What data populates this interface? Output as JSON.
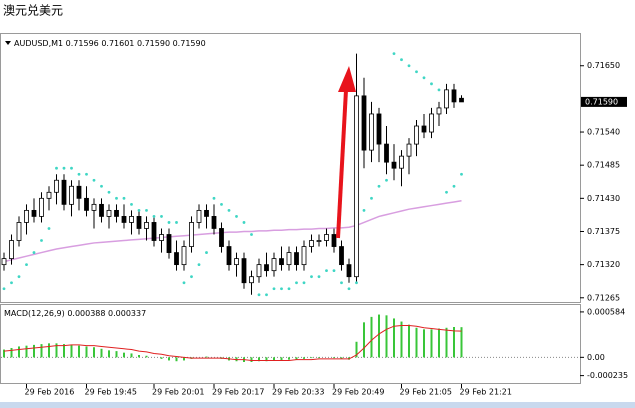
{
  "page_title": "澳元兑美元",
  "chart_data": [
    {
      "type": "candlestick",
      "symbol": "AUDUSD,M1",
      "quote": [
        "0.71596",
        "0.71601",
        "0.71590",
        "0.71590"
      ],
      "categories": [
        null,
        null,
        null,
        "29 Feb 2016",
        null,
        null,
        null,
        null,
        null,
        null,
        null,
        "29 Feb 19:45",
        null,
        null,
        null,
        null,
        null,
        null,
        null,
        null,
        "29 Feb 20:01",
        null,
        null,
        null,
        null,
        null,
        null,
        null,
        "29 Feb 20:17",
        null,
        null,
        null,
        null,
        null,
        null,
        null,
        "29 Feb 20:33",
        null,
        null,
        null,
        null,
        null,
        null,
        null,
        "29 Feb 20:49",
        null,
        null,
        null,
        null,
        null,
        null,
        null,
        null,
        "29 Feb 21:05",
        null,
        null,
        null,
        null,
        null,
        null,
        null,
        "29 Feb 21:21"
      ],
      "candles": [
        [
          0.7132,
          0.7134,
          0.7131,
          0.7133
        ],
        [
          0.7133,
          0.7137,
          0.7132,
          0.7136
        ],
        [
          0.7136,
          0.714,
          0.7135,
          0.7139
        ],
        [
          0.7139,
          0.7142,
          0.7137,
          0.7141
        ],
        [
          0.7141,
          0.7143,
          0.7139,
          0.714
        ],
        [
          0.714,
          0.7144,
          0.7139,
          0.7143
        ],
        [
          0.7143,
          0.7145,
          0.7141,
          0.7144
        ],
        [
          0.7144,
          0.7147,
          0.7142,
          0.7146
        ],
        [
          0.7146,
          0.7147,
          0.7141,
          0.7142
        ],
        [
          0.7142,
          0.7146,
          0.714,
          0.7145
        ],
        [
          0.7145,
          0.7146,
          0.7141,
          0.7143
        ],
        [
          0.7143,
          0.7145,
          0.714,
          0.7141
        ],
        [
          0.7141,
          0.7143,
          0.7138,
          0.7142
        ],
        [
          0.7142,
          0.7143,
          0.7139,
          0.714
        ],
        [
          0.714,
          0.7142,
          0.7138,
          0.7141
        ],
        [
          0.7141,
          0.7142,
          0.7139,
          0.714
        ],
        [
          0.714,
          0.7142,
          0.7138,
          0.7139
        ],
        [
          0.7139,
          0.7141,
          0.7137,
          0.714
        ],
        [
          0.714,
          0.7141,
          0.7137,
          0.7138
        ],
        [
          0.7138,
          0.714,
          0.7136,
          0.7139
        ],
        [
          0.7139,
          0.714,
          0.7135,
          0.7136
        ],
        [
          0.7136,
          0.7138,
          0.7134,
          0.7137
        ],
        [
          0.7137,
          0.7138,
          0.7133,
          0.7134
        ],
        [
          0.7134,
          0.7136,
          0.7131,
          0.7132
        ],
        [
          0.7132,
          0.7136,
          0.7131,
          0.7135
        ],
        [
          0.7135,
          0.714,
          0.7134,
          0.7139
        ],
        [
          0.7139,
          0.7142,
          0.7138,
          0.7141
        ],
        [
          0.7141,
          0.7142,
          0.7138,
          0.714
        ],
        [
          0.714,
          0.7142,
          0.7137,
          0.7138
        ],
        [
          0.7138,
          0.7139,
          0.7134,
          0.7135
        ],
        [
          0.7135,
          0.7136,
          0.7131,
          0.7132
        ],
        [
          0.7132,
          0.7134,
          0.713,
          0.7133
        ],
        [
          0.7133,
          0.7134,
          0.7128,
          0.7129
        ],
        [
          0.7129,
          0.7131,
          0.7127,
          0.713
        ],
        [
          0.713,
          0.7133,
          0.7129,
          0.7132
        ],
        [
          0.7132,
          0.7134,
          0.713,
          0.7131
        ],
        [
          0.7131,
          0.7134,
          0.713,
          0.7133
        ],
        [
          0.7133,
          0.7135,
          0.7131,
          0.7132
        ],
        [
          0.7132,
          0.7135,
          0.7131,
          0.7134
        ],
        [
          0.7134,
          0.7135,
          0.7131,
          0.7132
        ],
        [
          0.7132,
          0.7136,
          0.7131,
          0.7135
        ],
        [
          0.7135,
          0.7137,
          0.7134,
          0.7136
        ],
        [
          0.7136,
          0.7137,
          0.7135,
          0.7136
        ],
        [
          0.7136,
          0.7138,
          0.7135,
          0.7137
        ],
        [
          0.7137,
          0.7138,
          0.7134,
          0.7135
        ],
        [
          0.7135,
          0.7136,
          0.7131,
          0.7132
        ],
        [
          0.7132,
          0.7133,
          0.7129,
          0.713
        ],
        [
          0.713,
          0.7167,
          0.7129,
          0.716
        ],
        [
          0.716,
          0.7163,
          0.7148,
          0.7151
        ],
        [
          0.7151,
          0.7159,
          0.7149,
          0.7157
        ],
        [
          0.7157,
          0.7158,
          0.7149,
          0.7152
        ],
        [
          0.7152,
          0.7155,
          0.7147,
          0.7149
        ],
        [
          0.7149,
          0.7152,
          0.7146,
          0.7148
        ],
        [
          0.7148,
          0.7151,
          0.7145,
          0.715
        ],
        [
          0.715,
          0.7153,
          0.7147,
          0.7152
        ],
        [
          0.7152,
          0.7156,
          0.715,
          0.7155
        ],
        [
          0.7155,
          0.7157,
          0.7153,
          0.7154
        ],
        [
          0.7154,
          0.7158,
          0.7153,
          0.7157
        ],
        [
          0.7157,
          0.7159,
          0.7155,
          0.7158
        ],
        [
          0.7158,
          0.7162,
          0.7157,
          0.7161
        ],
        [
          0.7161,
          0.7162,
          0.7158,
          0.7159
        ],
        [
          0.71596,
          0.71601,
          0.7159,
          0.7159
        ]
      ],
      "up_color": "#ffffff",
      "down_color": "#000000",
      "ma": {
        "color": "#d89ee0",
        "values": [
          0.71325,
          0.71328,
          0.71331,
          0.71334,
          0.71337,
          0.7134,
          0.71343,
          0.71346,
          0.71348,
          0.7135,
          0.71352,
          0.71354,
          0.71356,
          0.71357,
          0.71358,
          0.71359,
          0.7136,
          0.71361,
          0.71362,
          0.71363,
          0.71364,
          0.71365,
          0.71366,
          0.71367,
          0.71368,
          0.71369,
          0.7137,
          0.71371,
          0.71372,
          0.71373,
          0.71374,
          0.71374,
          0.71375,
          0.71375,
          0.71376,
          0.71376,
          0.71377,
          0.71377,
          0.71378,
          0.71378,
          0.71379,
          0.71379,
          0.7138,
          0.7138,
          0.71381,
          0.71381,
          0.71382,
          0.71385,
          0.7139,
          0.71395,
          0.714,
          0.71403,
          0.71406,
          0.71409,
          0.71412,
          0.71414,
          0.71416,
          0.71418,
          0.7142,
          0.71422,
          0.71424,
          0.71426
        ]
      },
      "sar": {
        "color": "#3fd6c4",
        "values": [
          0.7128,
          0.7129,
          0.713,
          0.7132,
          0.7134,
          0.7136,
          0.7138,
          0.7148,
          0.7148,
          0.7148,
          0.7147,
          0.7147,
          0.7146,
          0.7145,
          0.7144,
          0.7143,
          0.7143,
          0.7142,
          0.7141,
          0.7141,
          0.714,
          0.714,
          0.7139,
          0.7139,
          0.7129,
          0.713,
          0.7132,
          0.7134,
          0.7143,
          0.7142,
          0.7141,
          0.714,
          0.7139,
          0.7137,
          0.7127,
          0.7127,
          0.7128,
          0.7128,
          0.7128,
          0.7129,
          0.7129,
          0.713,
          0.713,
          0.7131,
          0.7131,
          0.7129,
          0.7128,
          0.7129,
          0.7141,
          0.7143,
          0.7145,
          0.7146,
          0.7167,
          0.7166,
          0.7165,
          0.7164,
          0.7163,
          0.7162,
          0.7161,
          0.7144,
          0.7145,
          0.7147
        ]
      },
      "ylim": [
        0.71258,
        0.71701
      ],
      "yticks": [
        {
          "value": 0.7165,
          "label": "0.71650"
        },
        {
          "value": 0.7154,
          "label": "0.71540"
        },
        {
          "value": 0.71485,
          "label": "0.71485"
        },
        {
          "value": 0.7143,
          "label": "0.71430"
        },
        {
          "value": 0.71375,
          "label": "0.71375"
        },
        {
          "value": 0.7132,
          "label": "0.71320"
        },
        {
          "value": 0.71265,
          "label": "0.71265"
        }
      ],
      "last_price": {
        "value": 0.7159,
        "label": "0.71590"
      }
    },
    {
      "type": "macd",
      "name": "MACD(12,26,9)",
      "quote": [
        "0.000388",
        "0.000337"
      ],
      "histogram": {
        "color": "#39c639",
        "values": [
          0.0001,
          0.00012,
          0.00014,
          0.00015,
          0.00016,
          0.00017,
          0.00018,
          0.00018,
          0.00017,
          0.00016,
          0.00015,
          0.00014,
          0.00013,
          0.00011,
          9e-05,
          8e-05,
          6e-05,
          5e-05,
          3e-05,
          2e-05,
          0,
          -2e-05,
          -4e-05,
          -5e-05,
          -4e-05,
          -2e-05,
          0,
          1e-05,
          0,
          -2e-05,
          -4e-05,
          -5e-05,
          -6e-05,
          -6e-05,
          -5e-05,
          -5e-05,
          -4e-05,
          -4e-05,
          -3e-05,
          -3e-05,
          -2e-05,
          -1e-05,
          -1e-05,
          0,
          -1e-05,
          -2e-05,
          -3e-05,
          0.0002,
          0.00045,
          0.00052,
          0.00055,
          0.00054,
          0.0005,
          0.00046,
          0.00042,
          0.00038,
          0.00036,
          0.00036,
          0.00037,
          0.00038,
          0.00039,
          0.000388
        ]
      },
      "signal": {
        "color": "#e02020",
        "values": [
          8e-05,
          9e-05,
          0.0001,
          0.00011,
          0.00012,
          0.00013,
          0.00014,
          0.00015,
          0.00015,
          0.00016,
          0.00016,
          0.00015,
          0.00015,
          0.00014,
          0.00013,
          0.00012,
          0.00011,
          0.0001,
          8e-05,
          7e-05,
          5e-05,
          4e-05,
          2e-05,
          1e-05,
          0,
          -1e-05,
          -1e-05,
          -1e-05,
          -1e-05,
          -1e-05,
          -2e-05,
          -3e-05,
          -3e-05,
          -4e-05,
          -4e-05,
          -4e-05,
          -4e-05,
          -4e-05,
          -4e-05,
          -3e-05,
          -3e-05,
          -3e-05,
          -2e-05,
          -2e-05,
          -2e-05,
          -2e-05,
          -2e-05,
          3e-05,
          0.00012,
          0.00022,
          0.0003,
          0.00036,
          0.0004,
          0.00041,
          0.00041,
          0.0004,
          0.00038,
          0.00037,
          0.00036,
          0.00035,
          0.00034,
          0.000337
        ]
      },
      "ylim": [
        -0.00033,
        0.00066
      ],
      "yticks": [
        {
          "value": 0.000584,
          "label": "0.000584"
        },
        {
          "value": 0,
          "label": "0.00"
        },
        {
          "value": -0.000235,
          "label": "-0.000235"
        }
      ]
    }
  ]
}
